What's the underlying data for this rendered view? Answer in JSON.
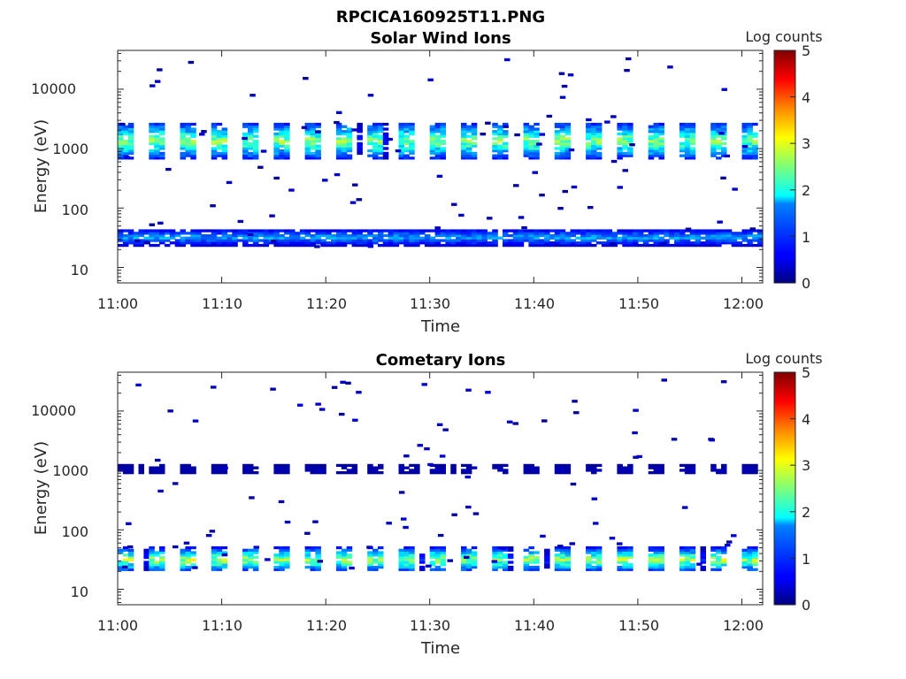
{
  "figure_title": "RPCICA160925T11.PNG",
  "chart_data": [
    {
      "type": "heatmap",
      "title": "Solar Wind Ions",
      "xlabel": "Time",
      "ylabel": "Energy (eV)",
      "x_ticks": [
        "11:00",
        "11:10",
        "11:20",
        "11:30",
        "11:40",
        "11:50",
        "12:00"
      ],
      "y_scale": "log",
      "y_ticks": [
        "10",
        "100",
        "1000",
        "10000"
      ],
      "colorbar_label": "Log counts",
      "colorbar_ticks": [
        "0",
        "1",
        "2",
        "3",
        "4",
        "5"
      ],
      "colorbar_range": [
        0,
        5
      ],
      "xlim_minutes": [
        0,
        62
      ],
      "ylim_eV": [
        5.5,
        45000
      ],
      "colormap": "jet",
      "bands": [
        {
          "energy_range_eV": [
            650,
            2800
          ],
          "period_min": 3.0,
          "peak_log_counts": 2.8,
          "pattern": "pulsed"
        },
        {
          "energy_range_eV": [
            23,
            45
          ],
          "period_min": 1.0,
          "peak_log_counts": 1.6,
          "pattern": "continuous"
        }
      ]
    },
    {
      "type": "heatmap",
      "title": "Cometary Ions",
      "xlabel": "Time",
      "ylabel": "Energy (eV)",
      "x_ticks": [
        "11:00",
        "11:10",
        "11:20",
        "11:30",
        "11:40",
        "11:50",
        "12:00"
      ],
      "y_scale": "log",
      "y_ticks": [
        "10",
        "100",
        "1000",
        "10000"
      ],
      "colorbar_label": "Log counts",
      "colorbar_ticks": [
        "0",
        "1",
        "2",
        "3",
        "4",
        "5"
      ],
      "colorbar_range": [
        0,
        5
      ],
      "xlim_minutes": [
        0,
        62
      ],
      "ylim_eV": [
        5.5,
        45000
      ],
      "colormap": "jet",
      "bands": [
        {
          "energy_range_eV": [
            850,
            1300
          ],
          "period_min": 3.0,
          "peak_log_counts": 0.3,
          "pattern": "pulsed"
        },
        {
          "energy_range_eV": [
            20,
            50
          ],
          "period_min": 3.0,
          "peak_log_counts": 3.0,
          "pattern": "pulsed"
        }
      ]
    }
  ]
}
